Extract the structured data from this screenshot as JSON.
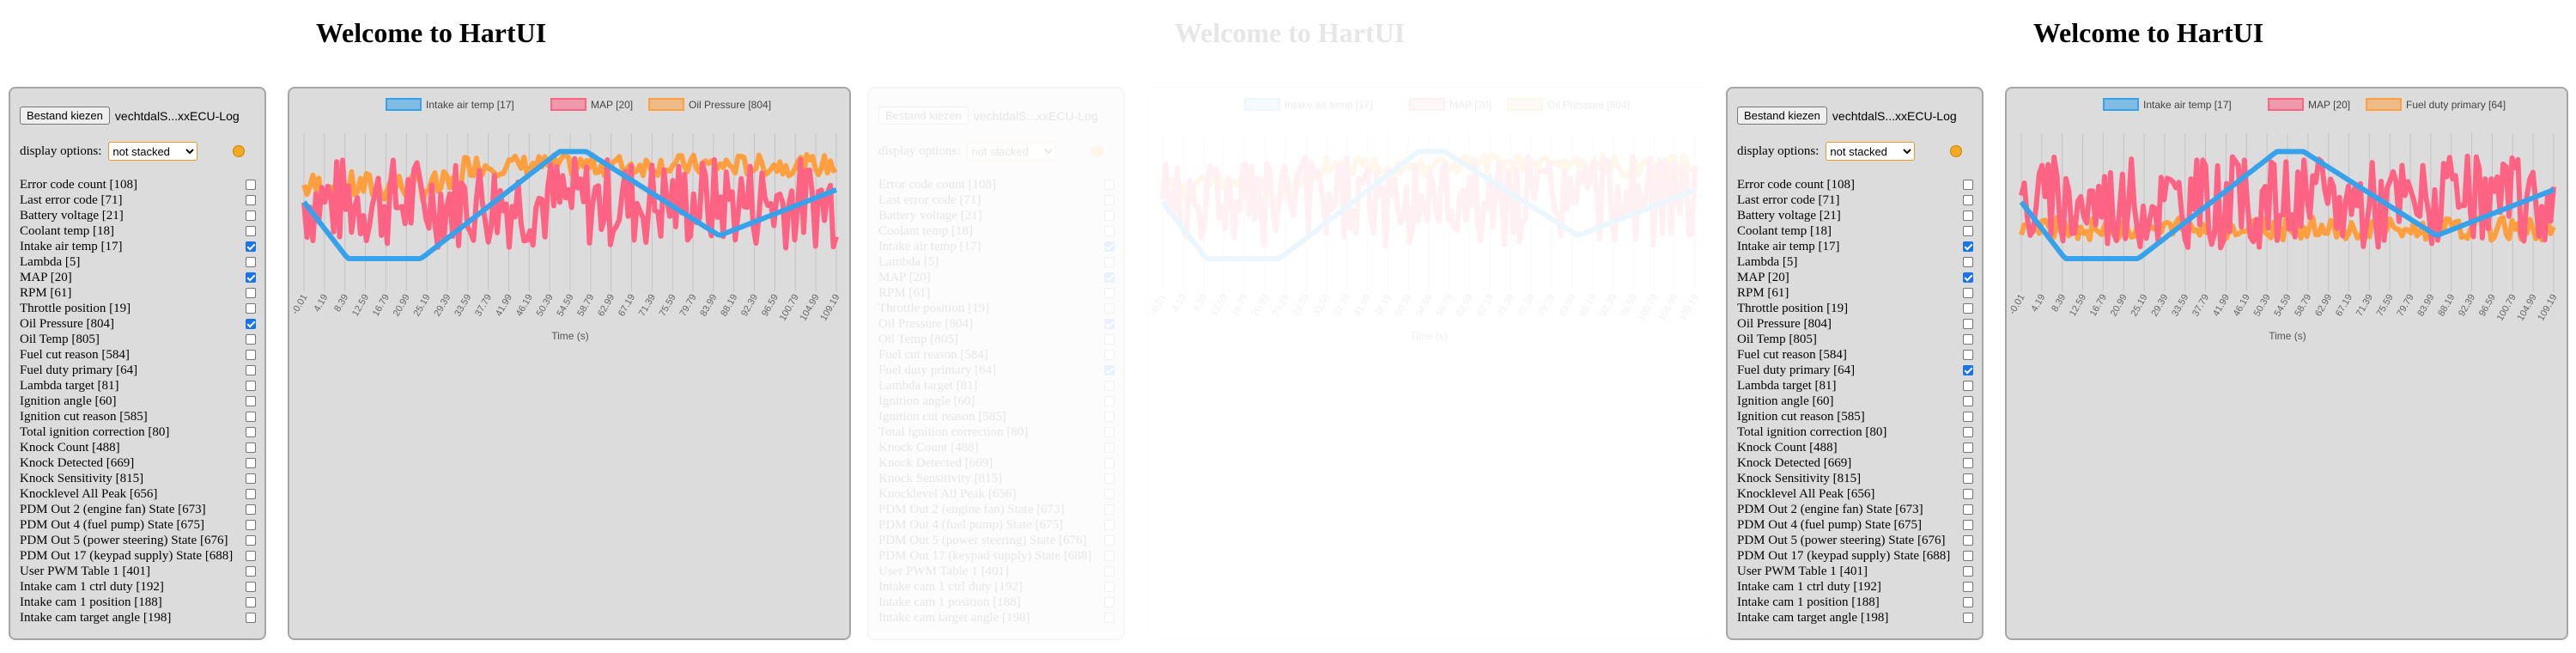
{
  "panels": [
    {
      "title": "Welcome to HartUI",
      "file_button": "Bestand kiezen",
      "file_name": "vechtdalS...xxECU-Log",
      "display_label": "display options:",
      "display_selected": "not stacked",
      "channels": [
        {
          "label": "Error code count [108]",
          "checked": false
        },
        {
          "label": "Last error code [71]",
          "checked": false
        },
        {
          "label": "Battery voltage [21]",
          "checked": false
        },
        {
          "label": "Coolant temp [18]",
          "checked": false
        },
        {
          "label": "Intake air temp [17]",
          "checked": true
        },
        {
          "label": "Lambda [5]",
          "checked": false
        },
        {
          "label": "MAP [20]",
          "checked": true
        },
        {
          "label": "RPM [61]",
          "checked": false
        },
        {
          "label": "Throttle position [19]",
          "checked": false
        },
        {
          "label": "Oil Pressure [804]",
          "checked": true
        },
        {
          "label": "Oil Temp [805]",
          "checked": false
        },
        {
          "label": "Fuel cut reason [584]",
          "checked": false
        },
        {
          "label": "Fuel duty primary [64]",
          "checked": false
        },
        {
          "label": "Lambda target [81]",
          "checked": false
        },
        {
          "label": "Ignition angle [60]",
          "checked": false
        },
        {
          "label": "Ignition cut reason [585]",
          "checked": false
        },
        {
          "label": "Total ignition correction [80]",
          "checked": false
        },
        {
          "label": "Knock Count [488]",
          "checked": false
        },
        {
          "label": "Knock Detected [669]",
          "checked": false
        },
        {
          "label": "Knock Sensitivity [815]",
          "checked": false
        },
        {
          "label": "Knocklevel All Peak [656]",
          "checked": false
        },
        {
          "label": "PDM Out 2 (engine fan) State [673]",
          "checked": false
        },
        {
          "label": "PDM Out 4 (fuel pump) State [675]",
          "checked": false
        },
        {
          "label": "PDM Out 5 (power steering) State [676]",
          "checked": false
        },
        {
          "label": "PDM Out 17 (keypad supply) State [688]",
          "checked": false
        },
        {
          "label": "User PWM Table 1 [401]",
          "checked": false
        },
        {
          "label": "Intake cam 1 ctrl duty [192]",
          "checked": false
        },
        {
          "label": "Intake cam 1 position [188]",
          "checked": false
        },
        {
          "label": "Intake cam target angle [198]",
          "checked": false
        }
      ],
      "chart_data": {
        "type": "line",
        "xlabel": "Time (s)",
        "x_ticks": [
          "-0.01",
          "4.19",
          "8.39",
          "12.59",
          "16.79",
          "20.99",
          "25.19",
          "29.39",
          "33.59",
          "37.79",
          "41.99",
          "46.19",
          "50.39",
          "54.59",
          "58.79",
          "62.99",
          "67.19",
          "71.39",
          "75.59",
          "79.79",
          "83.99",
          "88.19",
          "92.39",
          "96.59",
          "100.79",
          "104.99",
          "109.19"
        ],
        "series": [
          {
            "name": "Intake air temp [17]",
            "color": "#36a2eb"
          },
          {
            "name": "MAP [20]",
            "color": "#ff6384"
          },
          {
            "name": "Oil Pressure [804]",
            "color": "#ff9f40"
          }
        ]
      }
    },
    {
      "title": "Welcome to HartUI",
      "file_button": "Bestand kiezen",
      "file_name": "vechtdalS...xxECU-Log",
      "display_label": "display options:",
      "display_selected": "not stacked",
      "channels": [
        {
          "label": "Error code count [108]",
          "checked": false
        },
        {
          "label": "Last error code [71]",
          "checked": false
        },
        {
          "label": "Battery voltage [21]",
          "checked": false
        },
        {
          "label": "Coolant temp [18]",
          "checked": false
        },
        {
          "label": "Intake air temp [17]",
          "checked": true
        },
        {
          "label": "Lambda [5]",
          "checked": false
        },
        {
          "label": "MAP [20]",
          "checked": true
        },
        {
          "label": "RPM [61]",
          "checked": false
        },
        {
          "label": "Throttle position [19]",
          "checked": false
        },
        {
          "label": "Oil Pressure [804]",
          "checked": true
        },
        {
          "label": "Oil Temp [805]",
          "checked": false
        },
        {
          "label": "Fuel cut reason [584]",
          "checked": false
        },
        {
          "label": "Fuel duty primary [64]",
          "checked": true
        },
        {
          "label": "Lambda target [81]",
          "checked": false
        },
        {
          "label": "Ignition angle [60]",
          "checked": false
        },
        {
          "label": "Ignition cut reason [585]",
          "checked": false
        },
        {
          "label": "Total ignition correction [80]",
          "checked": false
        },
        {
          "label": "Knock Count [488]",
          "checked": false
        },
        {
          "label": "Knock Detected [669]",
          "checked": false
        },
        {
          "label": "Knock Sensitivity [815]",
          "checked": false
        },
        {
          "label": "Knocklevel All Peak [656]",
          "checked": false
        },
        {
          "label": "PDM Out 2 (engine fan) State [673]",
          "checked": false
        },
        {
          "label": "PDM Out 4 (fuel pump) State [675]",
          "checked": false
        },
        {
          "label": "PDM Out 5 (power steering) State [676]",
          "checked": false
        },
        {
          "label": "PDM Out 17 (keypad supply) State [688]",
          "checked": false
        },
        {
          "label": "User PWM Table 1 [401]",
          "checked": false
        },
        {
          "label": "Intake cam 1 ctrl duty [192]",
          "checked": false
        },
        {
          "label": "Intake cam 1 position [188]",
          "checked": false
        },
        {
          "label": "Intake cam target angle [198]",
          "checked": false
        }
      ],
      "chart_data": {
        "type": "line",
        "xlabel": "Time (s)",
        "x_ticks": [
          "-0.01",
          "4.19",
          "8.39",
          "12.59",
          "16.79",
          "20.99",
          "25.19",
          "29.39",
          "33.59",
          "37.79",
          "41.99",
          "46.19",
          "50.39",
          "54.59",
          "58.79",
          "62.99",
          "67.19",
          "71.39",
          "75.59",
          "79.79",
          "83.99",
          "88.19",
          "92.39",
          "96.59",
          "100.79",
          "104.99",
          "109.19"
        ],
        "series": [
          {
            "name": "Intake air temp [17]",
            "color": "#36a2eb"
          },
          {
            "name": "MAP [20]",
            "color": "#ff6384"
          },
          {
            "name": "Oil Pressure [804]",
            "color": "#ff9f40"
          }
        ]
      }
    },
    {
      "title": "Welcome to HartUI",
      "file_button": "Bestand kiezen",
      "file_name": "vechtdalS...xxECU-Log",
      "display_label": "display options:",
      "display_selected": "not stacked",
      "channels": [
        {
          "label": "Error code count [108]",
          "checked": false
        },
        {
          "label": "Last error code [71]",
          "checked": false
        },
        {
          "label": "Battery voltage [21]",
          "checked": false
        },
        {
          "label": "Coolant temp [18]",
          "checked": false
        },
        {
          "label": "Intake air temp [17]",
          "checked": true
        },
        {
          "label": "Lambda [5]",
          "checked": false
        },
        {
          "label": "MAP [20]",
          "checked": true
        },
        {
          "label": "RPM [61]",
          "checked": false
        },
        {
          "label": "Throttle position [19]",
          "checked": false
        },
        {
          "label": "Oil Pressure [804]",
          "checked": false
        },
        {
          "label": "Oil Temp [805]",
          "checked": false
        },
        {
          "label": "Fuel cut reason [584]",
          "checked": false
        },
        {
          "label": "Fuel duty primary [64]",
          "checked": true
        },
        {
          "label": "Lambda target [81]",
          "checked": false
        },
        {
          "label": "Ignition angle [60]",
          "checked": false
        },
        {
          "label": "Ignition cut reason [585]",
          "checked": false
        },
        {
          "label": "Total ignition correction [80]",
          "checked": false
        },
        {
          "label": "Knock Count [488]",
          "checked": false
        },
        {
          "label": "Knock Detected [669]",
          "checked": false
        },
        {
          "label": "Knock Sensitivity [815]",
          "checked": false
        },
        {
          "label": "Knocklevel All Peak [656]",
          "checked": false
        },
        {
          "label": "PDM Out 2 (engine fan) State [673]",
          "checked": false
        },
        {
          "label": "PDM Out 4 (fuel pump) State [675]",
          "checked": false
        },
        {
          "label": "PDM Out 5 (power steering) State [676]",
          "checked": false
        },
        {
          "label": "PDM Out 17 (keypad supply) State [688]",
          "checked": false
        },
        {
          "label": "User PWM Table 1 [401]",
          "checked": false
        },
        {
          "label": "Intake cam 1 ctrl duty [192]",
          "checked": false
        },
        {
          "label": "Intake cam 1 position [188]",
          "checked": false
        },
        {
          "label": "Intake cam target angle [198]",
          "checked": false
        }
      ],
      "chart_data": {
        "type": "line",
        "xlabel": "Time (s)",
        "x_ticks": [
          "-0.01",
          "4.19",
          "8.39",
          "12.59",
          "16.79",
          "20.99",
          "25.19",
          "29.39",
          "33.59",
          "37.79",
          "41.99",
          "46.19",
          "50.39",
          "54.59",
          "58.79",
          "62.99",
          "67.19",
          "71.39",
          "75.59",
          "79.79",
          "83.99",
          "88.19",
          "92.39",
          "96.59",
          "100.79",
          "104.99",
          "109.19"
        ],
        "series": [
          {
            "name": "Intake air temp [17]",
            "color": "#36a2eb"
          },
          {
            "name": "MAP [20]",
            "color": "#ff6384"
          },
          {
            "name": "Fuel duty primary [64]",
            "color": "#ff9f40"
          }
        ]
      }
    }
  ]
}
